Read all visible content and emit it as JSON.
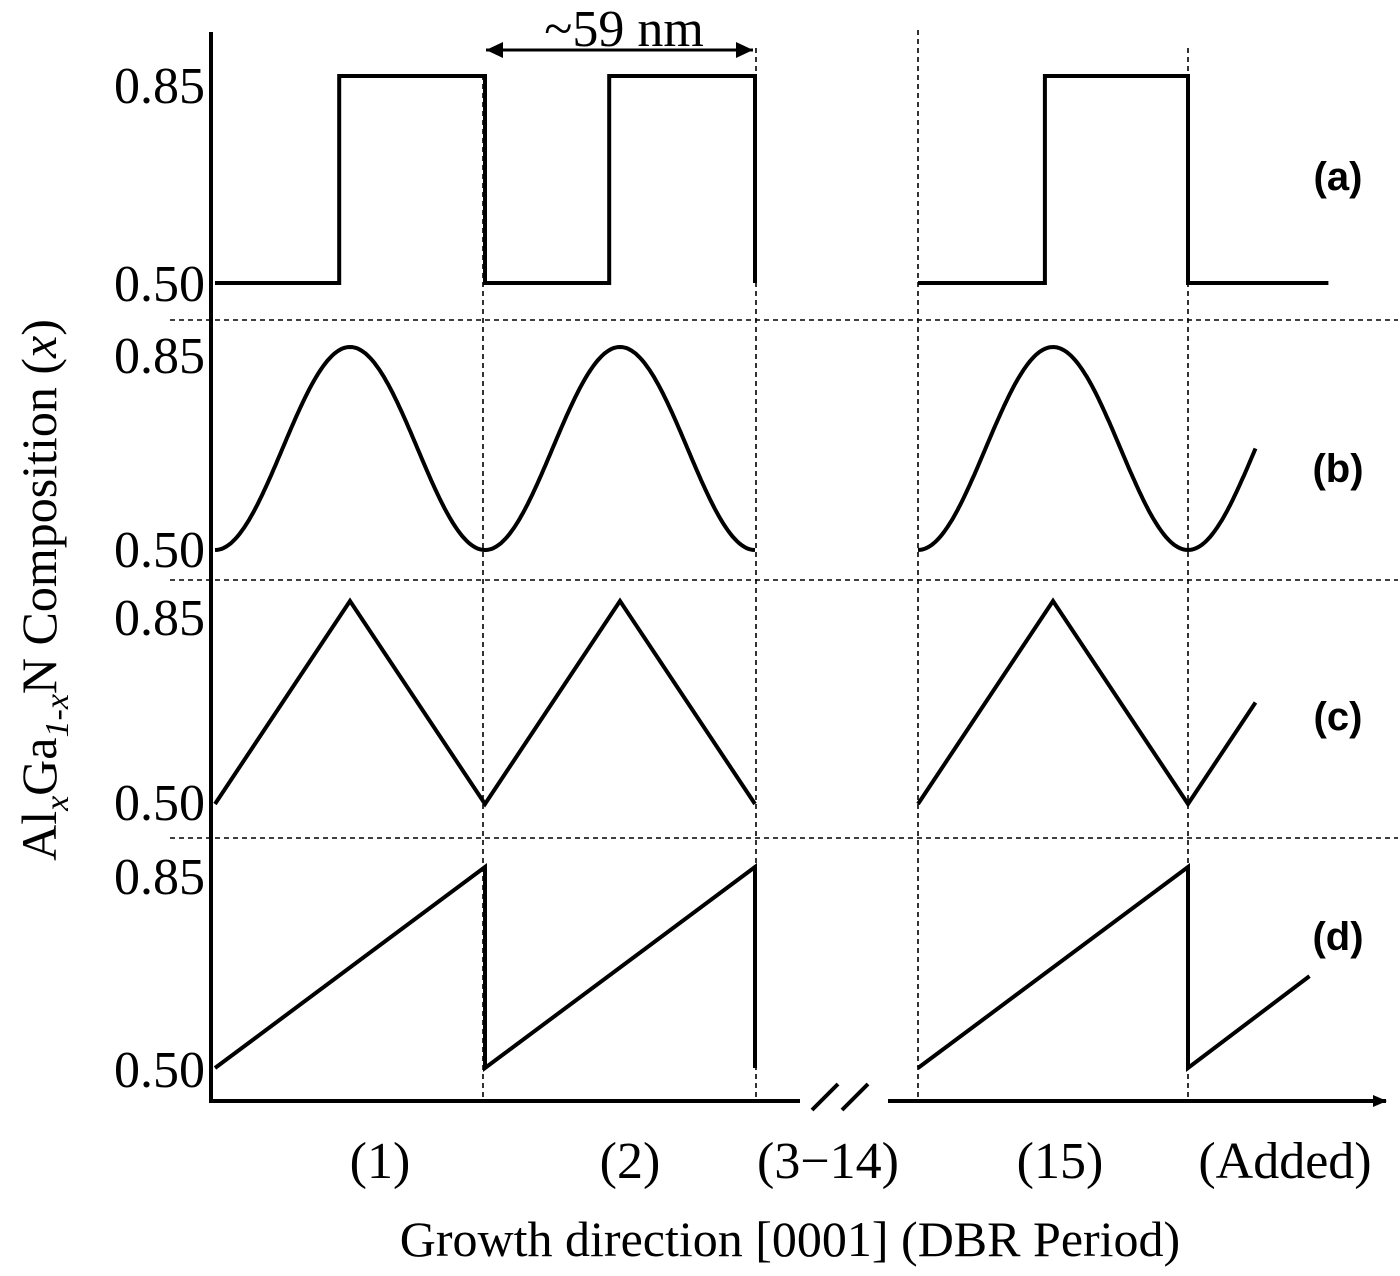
{
  "chart_data": {
    "type": "line",
    "ylabel": {
      "base_al": "Al",
      "sub_x1": "x",
      "base_ga": "Ga",
      "sub_1mx": "1-x",
      "base_n": "N Composition (",
      "ital_x": "x",
      "close": ")"
    },
    "xlabel": "Growth direction [0001] (DBR Period)",
    "period_annotation": "~59 nm",
    "x_categories": [
      "(1)",
      "(2)",
      "(3−14)",
      "(15)",
      "(Added)"
    ],
    "y_ticks": [
      "0.85",
      "0.50"
    ],
    "ylim": [
      0.5,
      0.85
    ],
    "period_length_nm": 59,
    "axis_break": "//",
    "grid": false,
    "panels": [
      {
        "label": "(a)",
        "profile": "square",
        "segments": [
          {
            "x": [
              0,
              0.46,
              0.46,
              1.0,
              1.0,
              1.46,
              1.46,
              2.0,
              2.0
            ],
            "y": [
              0.5,
              0.5,
              0.85,
              0.85,
              0.5,
              0.5,
              0.85,
              0.85,
              0.5
            ]
          },
          {
            "x": [
              0,
              0.47,
              0.47,
              1.0,
              1.0,
              1.52
            ],
            "y": [
              0.5,
              0.5,
              0.85,
              0.85,
              0.5,
              0.5
            ]
          }
        ]
      },
      {
        "label": "(b)",
        "profile": "sinusoidal",
        "segments": [
          {
            "function": "0.675 - 0.175*cos(2*pi*x)",
            "x_range": [
              0,
              2.0
            ]
          },
          {
            "function": "0.675 - 0.175*cos(2*pi*x)",
            "x_range": [
              0,
              1.25
            ]
          }
        ]
      },
      {
        "label": "(c)",
        "profile": "triangular",
        "segments": [
          {
            "x": [
              0,
              0.5,
              1.0,
              1.5,
              2.0
            ],
            "y": [
              0.5,
              0.85,
              0.5,
              0.85,
              0.5
            ]
          },
          {
            "x": [
              0,
              0.5,
              1.0,
              1.25
            ],
            "y": [
              0.5,
              0.85,
              0.5,
              0.675
            ]
          }
        ]
      },
      {
        "label": "(d)",
        "profile": "sawtooth",
        "segments": [
          {
            "x": [
              0,
              1.0,
              1.0,
              2.0,
              2.0
            ],
            "y": [
              0.5,
              0.85,
              0.5,
              0.85,
              0.5
            ]
          },
          {
            "x": [
              0,
              1.0,
              1.0,
              1.45
            ],
            "y": [
              0.5,
              0.85,
              0.5,
              0.66
            ]
          }
        ]
      }
    ]
  }
}
